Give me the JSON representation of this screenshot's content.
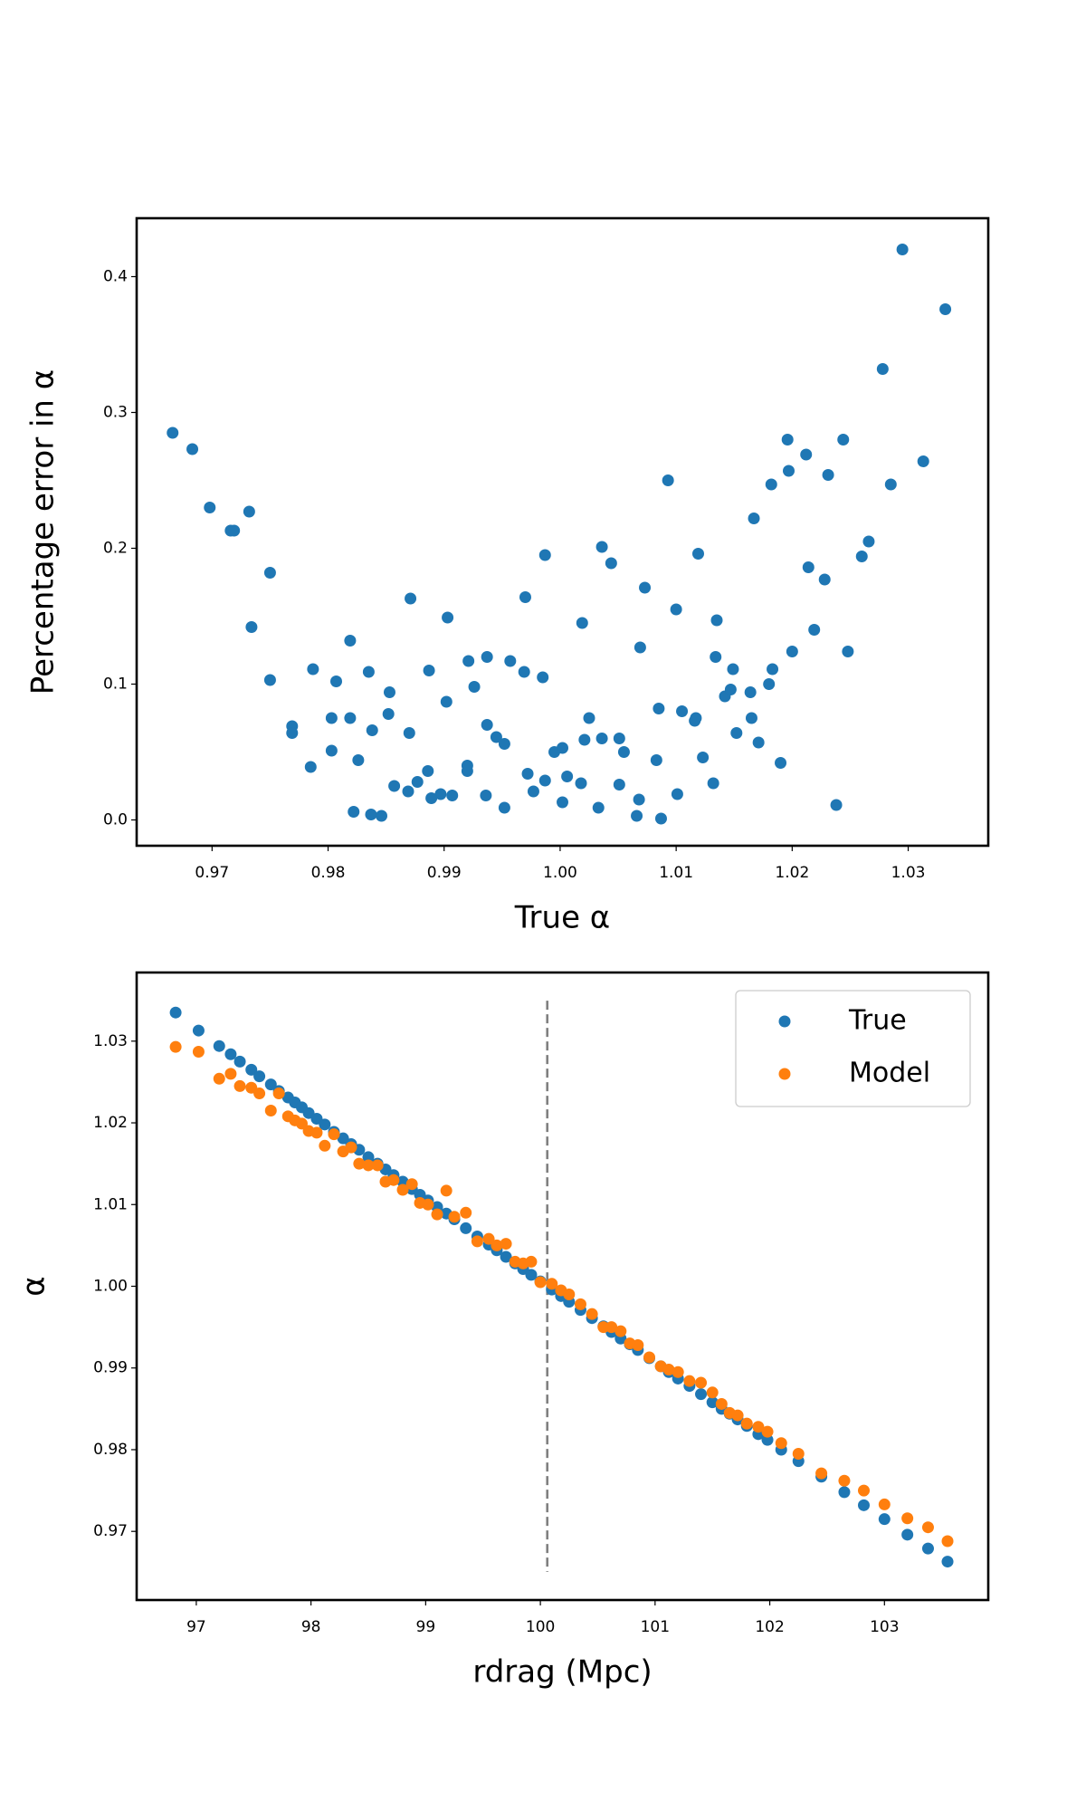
{
  "chart_data": [
    {
      "type": "scatter",
      "xlabel": "True α",
      "ylabel": "Percentage error in α",
      "color": "#1f77b4",
      "x": [
        0.9666,
        0.9683,
        0.9698,
        0.9716,
        0.9719,
        0.9732,
        0.9734,
        0.975,
        0.975,
        0.9769,
        0.9769,
        0.9785,
        0.9787,
        0.9803,
        0.9803,
        0.9807,
        0.9819,
        0.9819,
        0.9822,
        0.9826,
        0.9835,
        0.9837,
        0.9838,
        0.9846,
        0.9853,
        0.9852,
        0.9857,
        0.9869,
        0.9871,
        0.987,
        0.9877,
        0.9886,
        0.9887,
        0.9889,
        0.9897,
        0.9902,
        0.9903,
        0.9907,
        0.992,
        0.992,
        0.9921,
        0.9926,
        0.9937,
        0.9937,
        0.9936,
        0.9945,
        0.9952,
        0.9952,
        0.9957,
        0.9969,
        0.997,
        0.9972,
        0.9977,
        0.9985,
        0.9987,
        0.9987,
        0.9995,
        1.0002,
        1.0002,
        1.0006,
        1.0018,
        1.0019,
        1.0021,
        1.0025,
        1.0033,
        1.0036,
        1.0036,
        1.0044,
        1.0051,
        1.0051,
        1.0055,
        1.0066,
        1.0068,
        1.0069,
        1.0073,
        1.0083,
        1.0085,
        1.0087,
        1.0093,
        1.01,
        1.0101,
        1.0105,
        1.0116,
        1.0117,
        1.0119,
        1.0123,
        1.0132,
        1.0134,
        1.0135,
        1.0142,
        1.0147,
        1.0149,
        1.0152,
        1.0164,
        1.0165,
        1.0167,
        1.0171,
        1.018,
        1.0182,
        1.0183,
        1.019,
        1.0196,
        1.0197,
        1.02,
        1.0212,
        1.0214,
        1.0219,
        1.0228,
        1.0231,
        1.0238,
        1.0244,
        1.0248,
        1.026,
        1.0266,
        1.0278,
        1.0285,
        1.0295,
        1.0313,
        1.0332
      ],
      "values": [
        0.285,
        0.273,
        0.23,
        0.213,
        0.213,
        0.227,
        0.142,
        0.182,
        0.103,
        0.069,
        0.064,
        0.039,
        0.111,
        0.075,
        0.051,
        0.102,
        0.132,
        0.075,
        0.006,
        0.044,
        0.109,
        0.004,
        0.066,
        0.003,
        0.094,
        0.078,
        0.025,
        0.021,
        0.163,
        0.064,
        0.028,
        0.036,
        0.11,
        0.016,
        0.019,
        0.087,
        0.149,
        0.018,
        0.04,
        0.036,
        0.117,
        0.098,
        0.07,
        0.12,
        0.018,
        0.061,
        0.056,
        0.009,
        0.117,
        0.109,
        0.164,
        0.034,
        0.021,
        0.105,
        0.195,
        0.029,
        0.05,
        0.053,
        0.013,
        0.032,
        0.027,
        0.145,
        0.059,
        0.075,
        0.009,
        0.201,
        0.06,
        0.189,
        0.06,
        0.026,
        0.05,
        0.003,
        0.015,
        0.127,
        0.171,
        0.044,
        0.082,
        0.001,
        0.25,
        0.155,
        0.019,
        0.08,
        0.073,
        0.075,
        0.196,
        0.046,
        0.027,
        0.12,
        0.147,
        0.091,
        0.096,
        0.111,
        0.064,
        0.094,
        0.075,
        0.222,
        0.057,
        0.1,
        0.247,
        0.111,
        0.042,
        0.28,
        0.257,
        0.124,
        0.269,
        0.186,
        0.14,
        0.177,
        0.254,
        0.011,
        0.28,
        0.124,
        0.194,
        0.205,
        0.332,
        0.247,
        0.42,
        0.264,
        0.376
      ],
      "xlim": [
        0.9635,
        1.0369
      ],
      "xticks": [
        0.97,
        0.98,
        0.99,
        {
          "value": 1,
          "label": "1.00"
        },
        1.01,
        1.02,
        1.03
      ],
      "ylim": [
        -0.019,
        0.443
      ],
      "yticks": [
        {
          "value": 0,
          "label": "0.0"
        },
        0.1,
        0.2,
        0.3,
        0.4
      ]
    },
    {
      "type": "scatter",
      "xlabel": "rdrag (Mpc)",
      "ylabel": "α",
      "legend": "upper right",
      "vline": 100.06,
      "x": [
        96.82,
        97.02,
        97.2,
        97.3,
        97.38,
        97.48,
        97.55,
        97.65,
        97.72,
        97.8,
        97.86,
        97.92,
        97.98,
        98.05,
        98.12,
        98.2,
        98.28,
        98.35,
        98.42,
        98.5,
        98.58,
        98.65,
        98.72,
        98.8,
        98.88,
        98.95,
        99.02,
        99.1,
        99.18,
        99.25,
        99.35,
        99.45,
        99.55,
        99.62,
        99.7,
        99.78,
        99.85,
        99.92,
        100.0,
        100.1,
        100.18,
        100.25,
        100.35,
        100.45,
        100.55,
        100.62,
        100.7,
        100.78,
        100.85,
        100.95,
        101.05,
        101.12,
        101.2,
        101.3,
        101.4,
        101.5,
        101.58,
        101.65,
        101.72,
        101.8,
        101.9,
        101.98,
        102.1,
        102.25,
        102.45,
        102.65,
        102.82,
        103.0,
        103.2,
        103.38,
        103.55
      ],
      "series": [
        {
          "name": "True",
          "color": "#1f77b4",
          "values": [
            1.0335,
            1.0313,
            1.0294,
            1.0284,
            1.0275,
            1.0265,
            1.0257,
            1.0247,
            1.0239,
            1.0231,
            1.0225,
            1.0219,
            1.0212,
            1.0205,
            1.0198,
            1.0189,
            1.0181,
            1.0174,
            1.0167,
            1.0158,
            1.015,
            1.0143,
            1.0136,
            1.0128,
            1.0119,
            1.0112,
            1.0105,
            1.0097,
            1.0089,
            1.0082,
            1.0071,
            1.0061,
            1.0051,
            1.0044,
            1.0036,
            1.0028,
            1.0021,
            1.0014,
            1.0006,
            0.9996,
            0.9988,
            0.9981,
            0.9971,
            0.9961,
            0.9951,
            0.9944,
            0.9936,
            0.9929,
            0.9922,
            0.9912,
            0.9902,
            0.9895,
            0.9887,
            0.9878,
            0.9868,
            0.9858,
            0.985,
            0.9844,
            0.9837,
            0.9829,
            0.9819,
            0.9812,
            0.98,
            0.9786,
            0.9767,
            0.9748,
            0.9732,
            0.9715,
            0.9696,
            0.9679,
            0.9663
          ]
        },
        {
          "name": "Model",
          "color": "#ff7f0e",
          "values": [
            1.0293,
            1.0287,
            1.0254,
            1.026,
            1.0245,
            1.0243,
            1.0236,
            1.0215,
            1.0236,
            1.0208,
            1.0203,
            1.0199,
            1.019,
            1.0188,
            1.0172,
            1.0186,
            1.0165,
            1.017,
            1.015,
            1.0148,
            1.0148,
            1.0128,
            1.013,
            1.0118,
            1.0125,
            1.0102,
            1.01,
            1.0088,
            1.0117,
            1.0085,
            1.009,
            1.0055,
            1.0058,
            1.005,
            1.0052,
            1.003,
            1.0028,
            1.003,
            1.0005,
            1.0003,
            0.9995,
            0.999,
            0.9978,
            0.9966,
            0.995,
            0.995,
            0.9945,
            0.993,
            0.9928,
            0.9913,
            0.9902,
            0.9898,
            0.9895,
            0.9884,
            0.9882,
            0.987,
            0.9856,
            0.9845,
            0.9842,
            0.9832,
            0.9828,
            0.9822,
            0.9808,
            0.9795,
            0.9771,
            0.9762,
            0.975,
            0.9733,
            0.9716,
            0.9705,
            0.9688
          ]
        }
      ],
      "xlim": [
        96.48,
        103.905
      ],
      "xticks": [
        97,
        98,
        99,
        100,
        101,
        102,
        103
      ],
      "ylim": [
        0.9616,
        1.0384
      ],
      "yticks": [
        0.97,
        0.98,
        0.99,
        {
          "value": 1,
          "label": "1.00"
        },
        1.01,
        1.02,
        1.03
      ]
    }
  ]
}
